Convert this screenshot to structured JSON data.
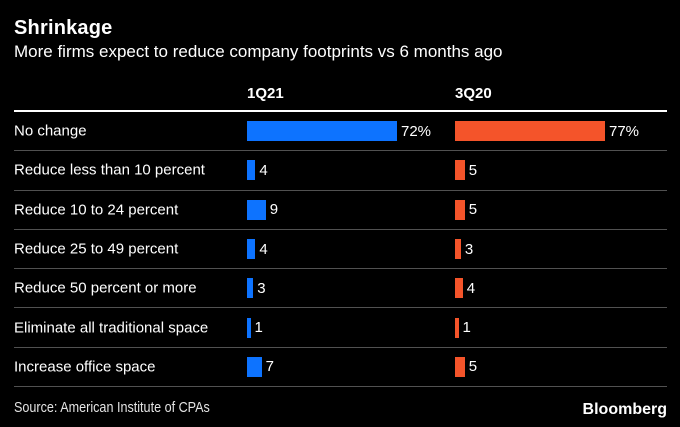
{
  "header": {
    "title": "Shrinkage",
    "subtitle": "More firms expect to reduce company footprints vs 6 months ago"
  },
  "footer": {
    "source": "Source: American Institute of CPAs",
    "brand": "Bloomberg"
  },
  "colors": {
    "background": "#000000",
    "series_1q21": "#0d73ff",
    "series_3q20": "#f4542a",
    "top_rule": "#ffffff",
    "row_separator": "#515151",
    "text": "#ffffff"
  },
  "chart_data": {
    "type": "bar",
    "orientation": "horizontal",
    "title": "Shrinkage",
    "subtitle": "More firms expect to reduce company footprints vs 6 months ago",
    "categories": [
      "No change",
      "Reduce less than 10 percent",
      "Reduce 10 to 24 percent",
      "Reduce 25 to 49 percent",
      "Reduce 50 percent or more",
      "Eliminate all traditional space",
      "Increase office space"
    ],
    "series": [
      {
        "name": "1Q21",
        "color": "#0d73ff",
        "values": [
          72,
          4,
          9,
          4,
          3,
          1,
          7
        ],
        "labels": [
          "72%",
          "4",
          "9",
          "4",
          "3",
          "1",
          "7"
        ]
      },
      {
        "name": "3Q20",
        "color": "#f4542a",
        "values": [
          77,
          5,
          5,
          3,
          4,
          1,
          5
        ],
        "labels": [
          "77%",
          "5",
          "5",
          "3",
          "4",
          "1",
          "5"
        ]
      }
    ],
    "legend_position": "column headers above bars",
    "grid": "horizontal row separators only",
    "value_scale": "each column normalized so its maximum value spans the full bar track",
    "source": "Source: American Institute of CPAs"
  }
}
